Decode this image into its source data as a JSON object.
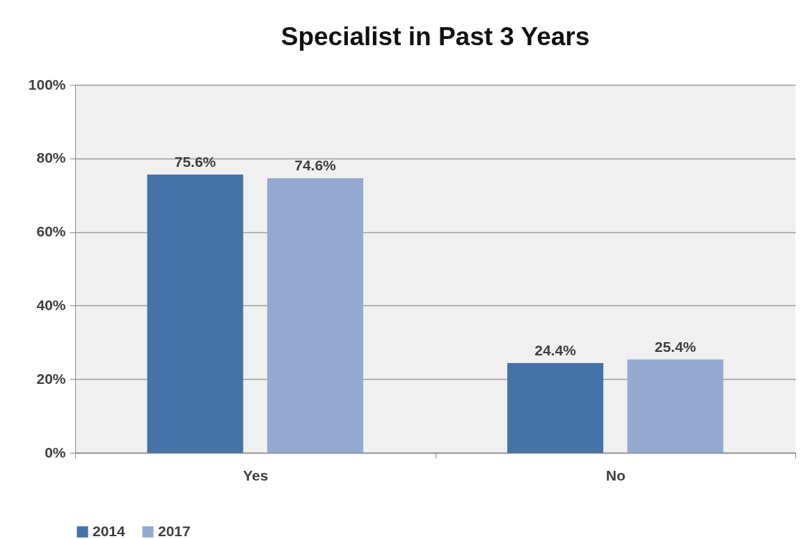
{
  "chart_data": {
    "type": "bar",
    "title": "Specialist in Past 3 Years",
    "categories": [
      "Yes",
      "No"
    ],
    "series": [
      {
        "name": "2014",
        "color": "#4572a7",
        "values": [
          75.6,
          24.4
        ],
        "value_labels": [
          "75.6%",
          "24.4%"
        ]
      },
      {
        "name": "2017",
        "color": "#95a9d1",
        "values": [
          74.6,
          25.4
        ],
        "value_labels": [
          "74.6%",
          "25.4%"
        ]
      }
    ],
    "ylim": [
      0,
      100
    ],
    "yticks": [
      {
        "value": 0,
        "label": "0%"
      },
      {
        "value": 20,
        "label": "20%"
      },
      {
        "value": 40,
        "label": "40%"
      },
      {
        "value": 60,
        "label": "60%"
      },
      {
        "value": 80,
        "label": "80%"
      },
      {
        "value": 100,
        "label": "100%"
      }
    ],
    "grid": "y",
    "legend": "bottom"
  }
}
